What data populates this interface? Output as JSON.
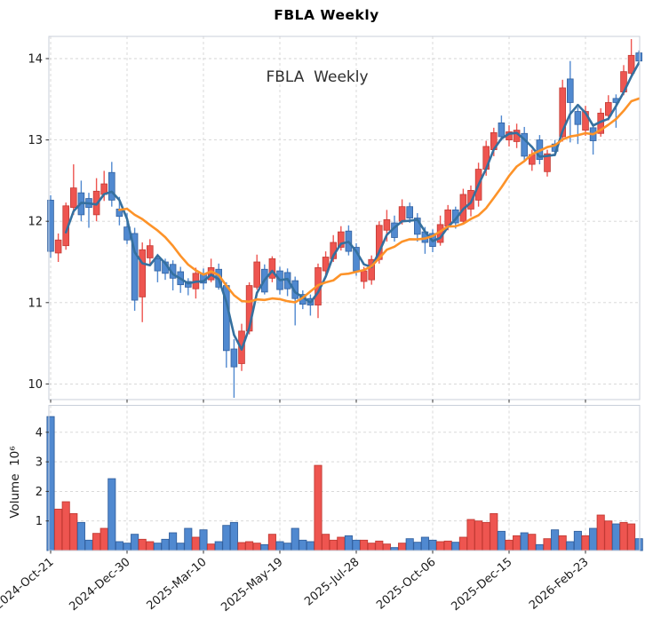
{
  "title": "FBLA  Weekly",
  "annotation": "FBLA  Weekly",
  "price_axis": {
    "tick_labels": [
      "10",
      "11",
      "12",
      "13",
      "14"
    ],
    "tick_values": [
      10,
      11,
      12,
      13,
      14
    ]
  },
  "volume_axis": {
    "label": "Volume  10⁶",
    "tick_labels": [
      "1",
      "2",
      "3",
      "4"
    ],
    "tick_values": [
      1,
      2,
      3,
      4
    ]
  },
  "x_axis": {
    "tick_labels": [
      "2024-Oct-21",
      "2024-Dec-30",
      "2025-Mar-10",
      "2025-May-19",
      "2025-Jul-28",
      "2025-Oct-06",
      "2025-Dec-15",
      "2026-Feb-23"
    ],
    "tick_indices": [
      0,
      10,
      20,
      30,
      40,
      50,
      60,
      70
    ]
  },
  "chart_data": {
    "type": "candlestick",
    "title": "FBLA  Weekly",
    "frequency": "weekly",
    "legend_position": "none",
    "grid": true,
    "ylim": [
      9.81,
      14.27
    ],
    "volume_ylim": [
      0,
      4.9
    ],
    "up_color": "#ee5550",
    "up_edge_color": "#c23b34",
    "down_color": "#5089d0",
    "down_edge_color": "#33619f",
    "ma_short_period": 3,
    "ma_short_color": "#35709f",
    "ma_long_period": 10,
    "ma_long_color": "#fd9329",
    "dates": [
      "2024-10-21",
      "2024-10-28",
      "2024-11-04",
      "2024-11-11",
      "2024-11-18",
      "2024-11-25",
      "2024-12-02",
      "2024-12-09",
      "2024-12-16",
      "2024-12-23",
      "2024-12-30",
      "2025-01-06",
      "2025-01-13",
      "2025-01-20",
      "2025-01-27",
      "2025-02-03",
      "2025-02-10",
      "2025-02-17",
      "2025-02-24",
      "2025-03-03",
      "2025-03-10",
      "2025-03-17",
      "2025-03-24",
      "2025-03-31",
      "2025-04-07",
      "2025-04-14",
      "2025-04-21",
      "2025-04-28",
      "2025-05-05",
      "2025-05-12",
      "2025-05-19",
      "2025-05-26",
      "2025-06-02",
      "2025-06-09",
      "2025-06-16",
      "2025-06-23",
      "2025-06-30",
      "2025-07-07",
      "2025-07-14",
      "2025-07-21",
      "2025-07-28",
      "2025-08-04",
      "2025-08-11",
      "2025-08-18",
      "2025-08-25",
      "2025-09-01",
      "2025-09-08",
      "2025-09-15",
      "2025-09-22",
      "2025-09-29",
      "2025-10-06",
      "2025-10-13",
      "2025-10-20",
      "2025-10-27",
      "2025-11-03",
      "2025-11-10",
      "2025-11-17",
      "2025-11-24",
      "2025-12-01",
      "2025-12-08",
      "2025-12-15",
      "2025-12-22",
      "2025-12-29",
      "2026-01-05",
      "2026-01-12",
      "2026-01-19",
      "2026-01-26",
      "2026-02-02",
      "2026-02-09",
      "2026-02-16",
      "2026-02-23",
      "2026-03-02",
      "2026-03-09",
      "2026-03-16",
      "2026-03-23",
      "2026-03-30",
      "2026-04-06",
      "2026-04-13"
    ],
    "open": [
      12.26,
      11.61,
      11.7,
      12.17,
      12.35,
      12.28,
      12.08,
      12.33,
      12.6,
      12.15,
      11.93,
      11.85,
      11.07,
      11.55,
      11.54,
      11.5,
      11.47,
      11.38,
      11.26,
      11.17,
      11.35,
      11.28,
      11.41,
      11.21,
      10.43,
      10.25,
      10.65,
      11.19,
      11.41,
      11.3,
      11.39,
      11.37,
      11.27,
      11.1,
      11.05,
      10.97,
      11.39,
      11.54,
      11.68,
      11.88,
      11.68,
      11.26,
      11.28,
      11.53,
      11.89,
      11.98,
      12.0,
      12.18,
      12.04,
      11.87,
      11.85,
      11.74,
      11.94,
      12.14,
      12.0,
      12.15,
      12.26,
      12.64,
      12.88,
      13.21,
      13.0,
      12.98,
      13.08,
      12.7,
      13.0,
      12.61,
      12.95,
      13.04,
      13.75,
      13.35,
      13.12,
      13.15,
      13.08,
      13.3,
      13.51,
      13.59,
      13.82,
      14.07
    ],
    "high": [
      12.32,
      11.85,
      12.23,
      12.7,
      12.5,
      12.35,
      12.53,
      12.62,
      12.73,
      12.3,
      12.1,
      11.92,
      11.74,
      11.78,
      11.6,
      11.54,
      11.52,
      11.44,
      11.3,
      11.43,
      11.42,
      11.54,
      11.48,
      11.25,
      10.55,
      10.74,
      11.25,
      11.59,
      11.47,
      11.57,
      11.44,
      11.42,
      11.32,
      11.15,
      11.1,
      11.48,
      11.63,
      11.83,
      11.94,
      11.95,
      11.73,
      11.44,
      11.58,
      12.0,
      12.14,
      12.07,
      12.27,
      12.23,
      12.1,
      11.93,
      11.9,
      12.07,
      12.2,
      12.18,
      12.4,
      12.44,
      12.72,
      12.99,
      13.15,
      13.3,
      13.18,
      13.2,
      13.16,
      12.88,
      13.06,
      12.88,
      13.0,
      13.74,
      13.97,
      13.4,
      13.42,
      13.2,
      13.39,
      13.55,
      13.56,
      13.92,
      14.24,
      14.1
    ],
    "low": [
      11.55,
      11.5,
      11.65,
      12.08,
      12.0,
      11.92,
      12.0,
      12.25,
      12.18,
      11.95,
      11.72,
      10.9,
      10.76,
      11.45,
      11.25,
      11.28,
      11.15,
      11.12,
      11.09,
      11.05,
      11.16,
      11.25,
      11.16,
      10.2,
      9.83,
      10.16,
      10.61,
      11.16,
      11.1,
      11.25,
      11.1,
      11.08,
      10.72,
      10.92,
      10.84,
      10.81,
      11.34,
      11.5,
      11.64,
      11.58,
      11.33,
      11.17,
      11.22,
      11.48,
      11.75,
      11.75,
      11.96,
      11.98,
      11.75,
      11.6,
      11.62,
      11.7,
      11.89,
      11.91,
      11.96,
      12.06,
      12.18,
      12.56,
      12.8,
      12.99,
      12.92,
      12.9,
      12.74,
      12.62,
      12.7,
      12.55,
      12.8,
      12.98,
      12.97,
      12.95,
      13.05,
      12.82,
      13.04,
      13.24,
      13.15,
      13.55,
      13.79,
      13.93
    ],
    "close": [
      11.63,
      11.77,
      12.19,
      12.41,
      12.08,
      12.17,
      12.37,
      12.46,
      12.26,
      12.06,
      11.77,
      11.03,
      11.65,
      11.7,
      11.39,
      11.36,
      11.3,
      11.22,
      11.19,
      11.36,
      11.24,
      11.43,
      11.19,
      10.41,
      10.21,
      10.65,
      11.21,
      11.5,
      11.13,
      11.54,
      11.16,
      11.17,
      11.05,
      10.98,
      10.97,
      11.43,
      11.56,
      11.74,
      11.87,
      11.63,
      11.39,
      11.39,
      11.53,
      11.95,
      12.02,
      11.8,
      12.18,
      12.04,
      11.84,
      11.74,
      11.69,
      11.96,
      12.14,
      11.98,
      12.33,
      12.38,
      12.64,
      12.92,
      13.09,
      13.04,
      13.1,
      13.12,
      12.8,
      12.82,
      12.76,
      12.83,
      12.86,
      13.64,
      13.46,
      13.19,
      13.35,
      12.99,
      13.33,
      13.46,
      13.46,
      13.84,
      14.04,
      13.97
    ],
    "volume_millions": [
      4.53,
      1.4,
      1.65,
      1.25,
      0.95,
      0.35,
      0.58,
      0.75,
      2.43,
      0.3,
      0.25,
      0.55,
      0.38,
      0.3,
      0.25,
      0.38,
      0.6,
      0.25,
      0.75,
      0.45,
      0.7,
      0.22,
      0.3,
      0.85,
      0.95,
      0.27,
      0.3,
      0.25,
      0.2,
      0.55,
      0.3,
      0.25,
      0.75,
      0.35,
      0.3,
      2.88,
      0.55,
      0.35,
      0.45,
      0.5,
      0.35,
      0.35,
      0.25,
      0.32,
      0.22,
      0.1,
      0.25,
      0.4,
      0.28,
      0.45,
      0.35,
      0.3,
      0.32,
      0.28,
      0.45,
      1.05,
      1.0,
      0.95,
      1.25,
      0.65,
      0.35,
      0.5,
      0.6,
      0.55,
      0.2,
      0.4,
      0.7,
      0.5,
      0.3,
      0.65,
      0.5,
      0.75,
      1.2,
      1.0,
      0.9,
      0.95,
      0.9,
      0.4
    ]
  }
}
